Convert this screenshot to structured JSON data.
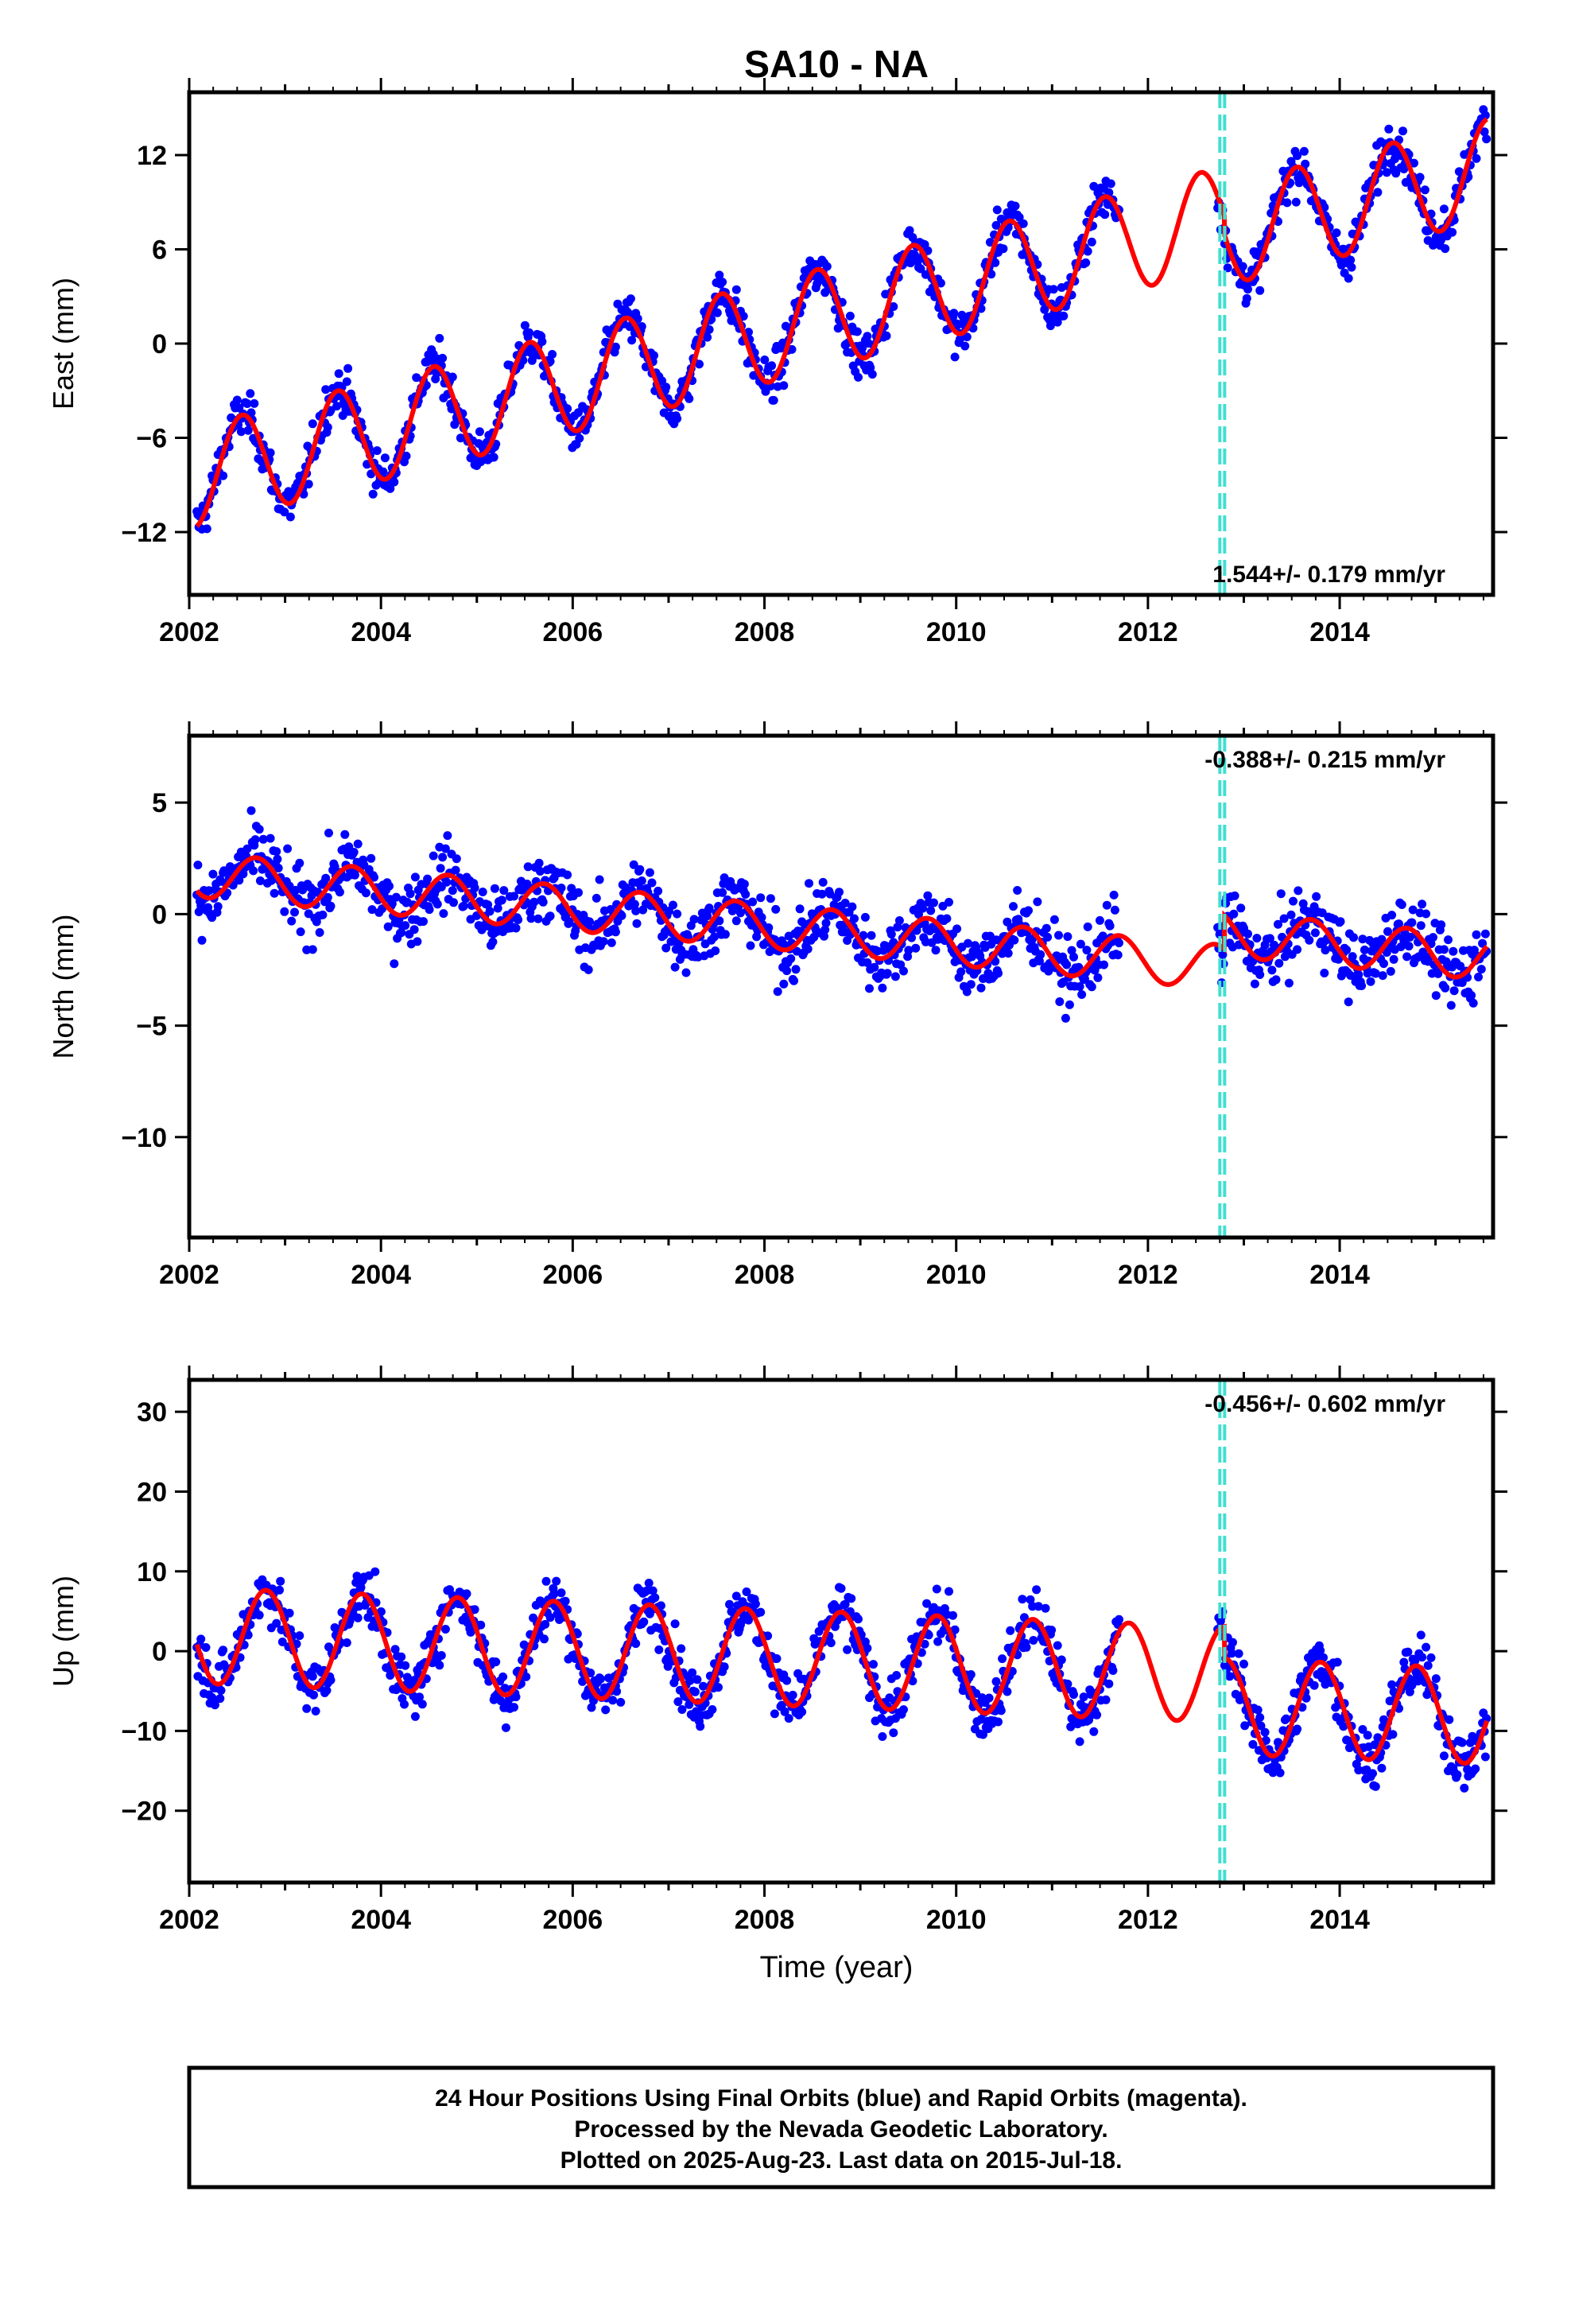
{
  "chart_data": {
    "type": "scatter",
    "title": "SA10 - NA",
    "xlabel": "Time (year)",
    "xlim": [
      2002.0,
      2015.6
    ],
    "x_ticks": [
      2002,
      2004,
      2006,
      2008,
      2010,
      2012,
      2014
    ],
    "x_tick_labels": [
      "2002",
      "2004",
      "2006",
      "2008",
      "2010",
      "2012",
      "2014"
    ],
    "equipment_change_lines": [
      2012.75,
      2012.8
    ],
    "series_colors": {
      "points": "#0000ff",
      "model": "#ff0000",
      "offsets": "#40e0d0"
    },
    "panels": [
      {
        "name": "east",
        "ylabel": "East (mm)",
        "ylim": [
          -16,
          16
        ],
        "y_ticks": [
          -12,
          -6,
          0,
          6,
          12
        ],
        "y_tick_labels": [
          "−12",
          "−6",
          "0",
          "6",
          "12"
        ],
        "rate_text": "1.544+/- 0.179 mm/yr",
        "rate_position": "bottom-right",
        "trend": {
          "slope": 1.544,
          "intercept_2002": -8.6
        },
        "seasonal": {
          "amplitude": 3.2,
          "phase_year": 2002.3
        },
        "noise_sd": 1.4,
        "offset_at_2012_8": -1.2
      },
      {
        "name": "north",
        "ylabel": "North (mm)",
        "ylim": [
          -14.5,
          8
        ],
        "y_ticks": [
          -10,
          -5,
          0,
          5
        ],
        "y_tick_labels": [
          "−10",
          "−5",
          "0",
          "5"
        ],
        "rate_text": "-0.388+/- 0.215 mm/yr",
        "rate_position": "top-right",
        "trend": {
          "slope": -0.388,
          "intercept_2002": 1.8
        },
        "seasonal": {
          "amplitude": 1.0,
          "phase_year": 2002.45
        },
        "noise_sd": 1.5,
        "offset_at_2012_8": 1.5
      },
      {
        "name": "up",
        "ylabel": "Up (mm)",
        "ylim": [
          -29,
          34
        ],
        "y_ticks": [
          -20,
          -10,
          0,
          10,
          20,
          30
        ],
        "y_tick_labels": [
          "−20",
          "−10",
          "0",
          "10",
          "20",
          "30"
        ],
        "rate_text": "-0.456+/- 0.602 mm/yr",
        "rate_position": "top-right",
        "trend": {
          "slope": -0.456,
          "intercept_2002": 2.0
        },
        "seasonal": {
          "amplitude": 6.0,
          "phase_year": 2002.55
        },
        "noise_sd": 3.5,
        "offset_at_2012_8": -4.0
      }
    ],
    "data_gap": [
      2011.7,
      2012.72
    ]
  },
  "caption": {
    "line1": "24 Hour Positions Using Final Orbits (blue) and Rapid Orbits (magenta).",
    "line2": "Processed by the Nevada Geodetic Laboratory.",
    "line3": "Plotted on 2025-Aug-23. Last data on 2015-Jul-18."
  }
}
